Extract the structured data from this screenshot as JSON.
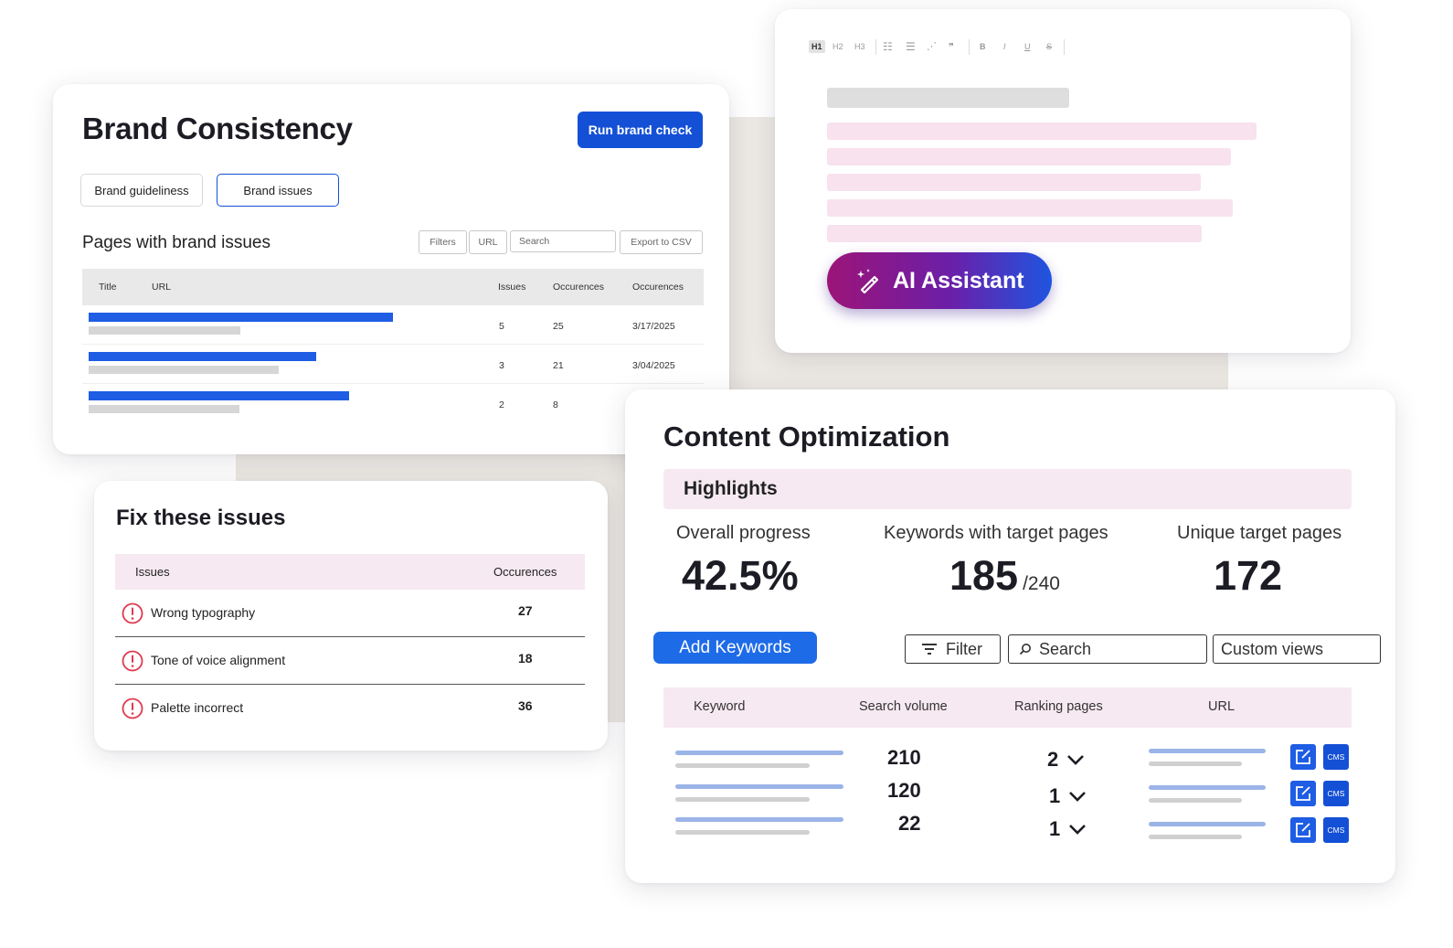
{
  "brand": {
    "title": "Brand Consistency",
    "run_button": "Run brand check",
    "tabs": [
      "Brand guideliness",
      "Brand issues"
    ],
    "subtitle": "Pages with brand issues",
    "toolbar": {
      "filters": "Filters",
      "url": "URL",
      "search_placeholder": "Search",
      "export": "Export to CSV"
    },
    "columns": [
      "Title",
      "URL",
      "Issues",
      "Occurences",
      "Occurences"
    ],
    "rows": [
      {
        "issues": "5",
        "occurences": "25",
        "date": "3/17/2025"
      },
      {
        "issues": "3",
        "occurences": "21",
        "date": "3/04/2025"
      },
      {
        "issues": "2",
        "occurences": "8",
        "date": ""
      }
    ],
    "accent": "#1450d6"
  },
  "editor": {
    "toolbar": [
      "H1",
      "H2",
      "H3",
      "B",
      "I",
      "U",
      "S"
    ],
    "ai_button": "AI Assistant"
  },
  "fix": {
    "title": "Fix these issues",
    "columns": [
      "Issues",
      "Occurences"
    ],
    "rows": [
      {
        "label": "Wrong typography",
        "count": "27"
      },
      {
        "label": "Tone of voice alignment",
        "count": "18"
      },
      {
        "label": "Palette incorrect",
        "count": "36"
      }
    ]
  },
  "content": {
    "title": "Content Optimization",
    "highlights": "Highlights",
    "stats": [
      {
        "label": "Overall progress",
        "value": "42.5%",
        "sub": ""
      },
      {
        "label": "Keywords with target pages",
        "value": "185",
        "sub": "/240"
      },
      {
        "label": "Unique target pages",
        "value": "172",
        "sub": ""
      }
    ],
    "add_keywords": "Add Keywords",
    "filter": "Filter",
    "search_placeholder": "Search",
    "custom_views": "Custom views",
    "columns": [
      "Keyword",
      "Search volume",
      "Ranking pages",
      "URL"
    ],
    "rows": [
      {
        "volume": "210",
        "ranking": "2",
        "cms": "CMS"
      },
      {
        "volume": "120",
        "ranking": "1",
        "cms": "CMS"
      },
      {
        "volume": "22",
        "ranking": "1",
        "cms": "CMS"
      }
    ]
  }
}
